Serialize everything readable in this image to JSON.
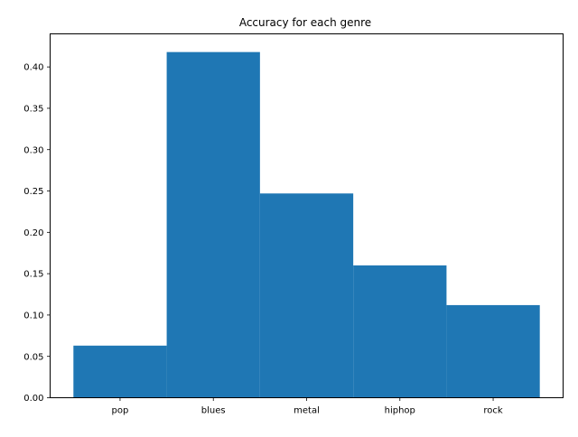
{
  "chart_data": {
    "type": "bar",
    "title": "Accuracy for each genre",
    "xlabel": "",
    "ylabel": "",
    "categories": [
      "pop",
      "blues",
      "metal",
      "hiphop",
      "rock"
    ],
    "values": [
      0.063,
      0.418,
      0.247,
      0.16,
      0.112
    ],
    "ylim": [
      0,
      0.44
    ],
    "yticks": [
      "0.00",
      "0.05",
      "0.10",
      "0.15",
      "0.20",
      "0.25",
      "0.30",
      "0.35",
      "0.40"
    ],
    "bar_color": "#1f77b4",
    "grid": false,
    "legend": "none"
  }
}
